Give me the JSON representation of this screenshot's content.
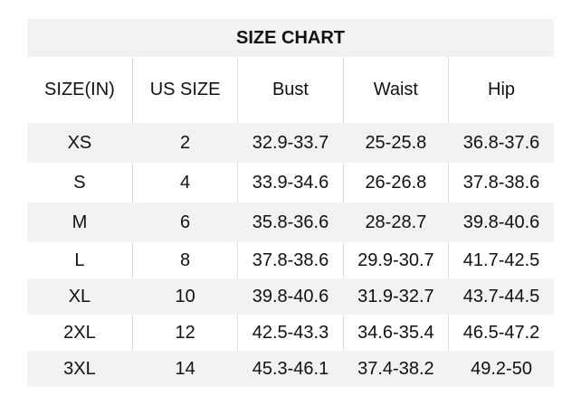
{
  "title": "SIZE CHART",
  "columns": [
    "SIZE(IN)",
    "US SIZE",
    "Bust",
    "Waist",
    "Hip"
  ],
  "rows": [
    [
      "XS",
      "2",
      "32.9-33.7",
      "25-25.8",
      "36.8-37.6"
    ],
    [
      "S",
      "4",
      "33.9-34.6",
      "26-26.8",
      "37.8-38.6"
    ],
    [
      "M",
      "6",
      "35.8-36.6",
      "28-28.7",
      "39.8-40.6"
    ],
    [
      "L",
      "8",
      "37.8-38.6",
      "29.9-30.7",
      "41.7-42.5"
    ],
    [
      "XL",
      "10",
      "39.8-40.6",
      "31.9-32.7",
      "43.7-44.5"
    ],
    [
      "2XL",
      "12",
      "42.5-43.3",
      "34.6-35.4",
      "46.5-47.2"
    ],
    [
      "3XL",
      "14",
      "45.3-46.1",
      "37.4-38.2",
      "49.2-50"
    ]
  ],
  "colors": {
    "stripe": "#f2f2f2",
    "text": "#111111"
  }
}
